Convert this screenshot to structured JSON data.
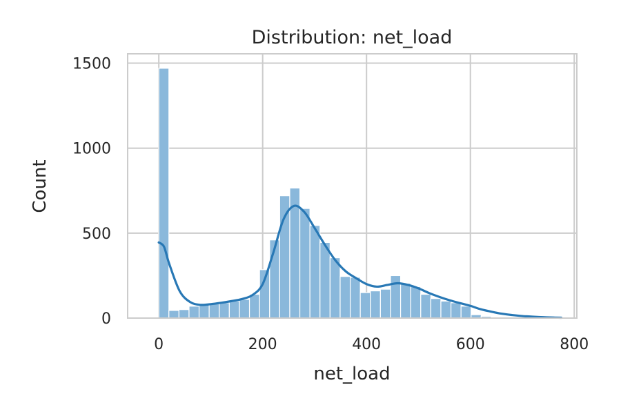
{
  "chart_data": {
    "type": "bar",
    "title": "Distribution: net_load",
    "xlabel": "net_load",
    "ylabel": "Count",
    "xlim": [
      -60,
      805
    ],
    "ylim": [
      0,
      1555
    ],
    "xticks": [
      0,
      200,
      400,
      600,
      800
    ],
    "yticks": [
      0,
      500,
      1000,
      1500
    ],
    "xtick_labels": [
      "0",
      "200",
      "400",
      "600",
      "800"
    ],
    "ytick_labels": [
      "0",
      "500",
      "1000",
      "1500"
    ],
    "grid": true,
    "bin_width": 19.4,
    "bin_start": 0,
    "counts": [
      1470,
      45,
      50,
      70,
      80,
      85,
      90,
      100,
      110,
      140,
      285,
      460,
      720,
      765,
      645,
      545,
      445,
      355,
      245,
      240,
      150,
      160,
      170,
      250,
      205,
      185,
      140,
      115,
      100,
      90,
      70,
      20,
      10,
      6,
      4,
      3,
      2,
      2,
      1,
      1
    ],
    "kde": {
      "x": [
        0,
        10,
        20,
        40,
        60,
        80,
        100,
        120,
        140,
        160,
        180,
        200,
        220,
        240,
        260,
        280,
        300,
        320,
        340,
        360,
        380,
        400,
        420,
        440,
        460,
        480,
        500,
        520,
        540,
        560,
        580,
        600,
        620,
        640,
        660,
        680,
        700,
        720,
        740,
        760,
        775
      ],
      "y": [
        445,
        420,
        320,
        160,
        95,
        78,
        82,
        90,
        100,
        112,
        135,
        200,
        380,
        580,
        660,
        625,
        530,
        430,
        340,
        275,
        235,
        200,
        185,
        195,
        205,
        195,
        175,
        148,
        125,
        105,
        88,
        72,
        52,
        38,
        26,
        18,
        12,
        8,
        5,
        3,
        2
      ]
    },
    "colors": {
      "bar": "#8ab8db",
      "bar_edge": "#ffffff",
      "kde": "#2878b5",
      "grid": "#cccccc",
      "spine": "#cccccc"
    }
  }
}
